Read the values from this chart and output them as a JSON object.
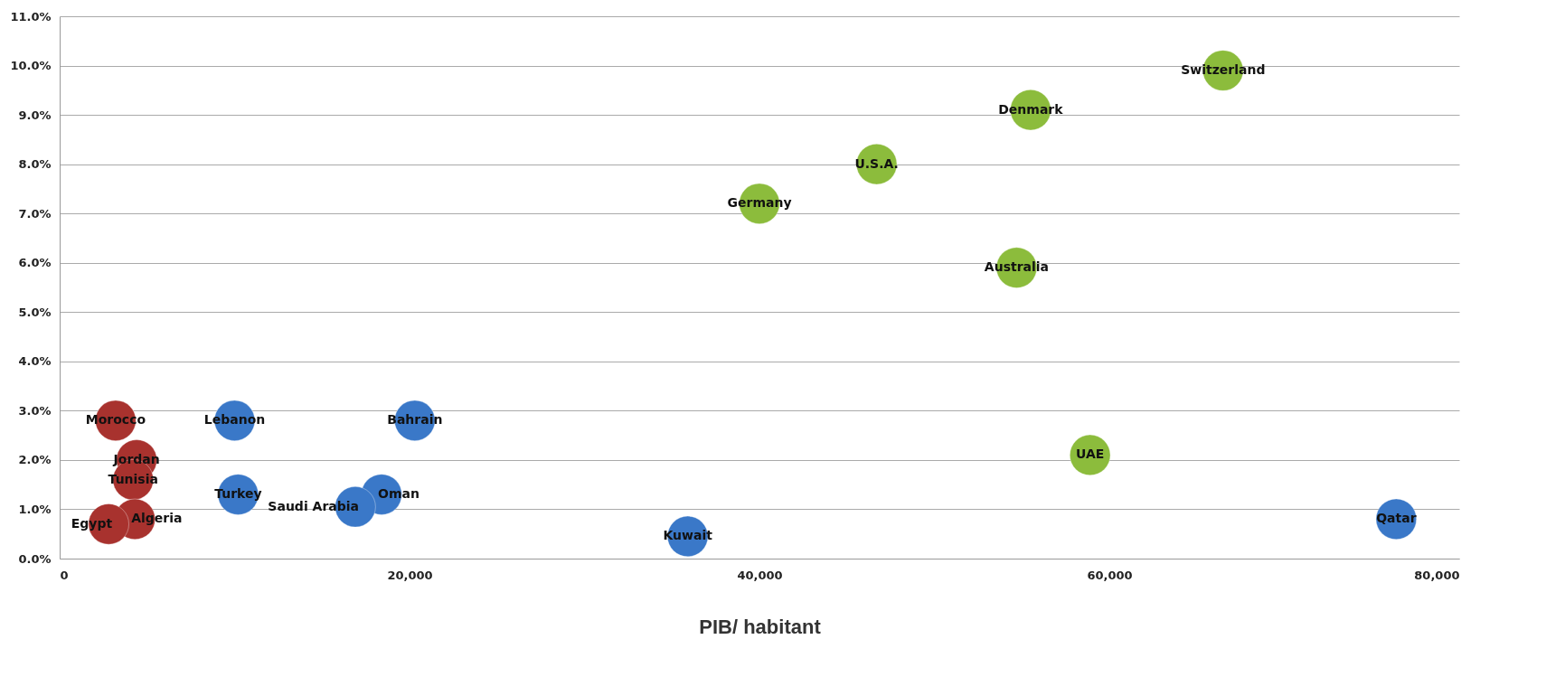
{
  "chart_data": {
    "type": "scatter",
    "xlabel": "PIB/ habitant",
    "xlim": [
      0,
      80000
    ],
    "ylim": [
      0,
      11
    ],
    "xticks": [
      0,
      {
        "value": 20000,
        "label": "20,000"
      },
      {
        "value": 40000,
        "label": "40,000"
      },
      {
        "value": 60000,
        "label": "60,000"
      },
      {
        "value": 80000,
        "label": "80,000"
      }
    ],
    "yticks": [
      {
        "value": 0,
        "label": "0.0%"
      },
      {
        "value": 1,
        "label": "1.0%"
      },
      {
        "value": 2,
        "label": "2.0%"
      },
      {
        "value": 3,
        "label": "3.0%"
      },
      {
        "value": 4,
        "label": "4.0%"
      },
      {
        "value": 5,
        "label": "5.0%"
      },
      {
        "value": 6,
        "label": "6.0%"
      },
      {
        "value": 7,
        "label": "7.0%"
      },
      {
        "value": 8,
        "label": "8.0%"
      },
      {
        "value": 9,
        "label": "9.0%"
      },
      {
        "value": 10,
        "label": "10.0%"
      },
      {
        "value": 11,
        "label": "11.0%"
      }
    ],
    "grid": "y",
    "marker": "circle",
    "series": [
      {
        "color": "#a8322e",
        "x": [
          3200,
          4400,
          4200,
          4300,
          2800
        ],
        "values": [
          2.8,
          2.0,
          1.6,
          0.8,
          0.7
        ]
      },
      {
        "color": "#3a78c8",
        "x": [
          10000,
          20300,
          10200,
          18400,
          16900,
          35900,
          76400
        ],
        "values": [
          2.8,
          2.8,
          1.3,
          1.3,
          1.05,
          0.45,
          0.8
        ]
      },
      {
        "color": "#8cbc3c",
        "x": [
          66500,
          55500,
          46700,
          40000,
          54700,
          58900
        ],
        "values": [
          9.9,
          9.1,
          8.0,
          7.2,
          5.9,
          2.1
        ]
      }
    ],
    "annotations": [
      {
        "text": "Morocco",
        "x": 3200,
        "y": 2.8
      },
      {
        "text": "Jordan",
        "x": 4400,
        "y": 2.0
      },
      {
        "text": "Tunisia",
        "x": 4200,
        "y": 1.6
      },
      {
        "text": "Algeria",
        "x": 4300,
        "y": 0.8
      },
      {
        "text": "Egypt",
        "x": 2800,
        "y": 0.7
      },
      {
        "text": "Lebanon",
        "x": 10000,
        "y": 2.8
      },
      {
        "text": "Bahrain",
        "x": 20300,
        "y": 2.8
      },
      {
        "text": "Turkey",
        "x": 10200,
        "y": 1.3
      },
      {
        "text": "Oman",
        "x": 18400,
        "y": 1.3
      },
      {
        "text": "Saudi Arabia",
        "x": 16900,
        "y": 1.05
      },
      {
        "text": "Kuwait",
        "x": 35900,
        "y": 0.45
      },
      {
        "text": "Qatar",
        "x": 76400,
        "y": 0.8
      },
      {
        "text": "Switzerland",
        "x": 66500,
        "y": 9.9
      },
      {
        "text": "Denmark",
        "x": 55500,
        "y": 9.1
      },
      {
        "text": "U.S.A.",
        "x": 46700,
        "y": 8.0
      },
      {
        "text": "Germany",
        "x": 40000,
        "y": 7.2
      },
      {
        "text": "Australia",
        "x": 54700,
        "y": 5.9
      },
      {
        "text": "UAE",
        "x": 58900,
        "y": 2.1
      }
    ]
  }
}
